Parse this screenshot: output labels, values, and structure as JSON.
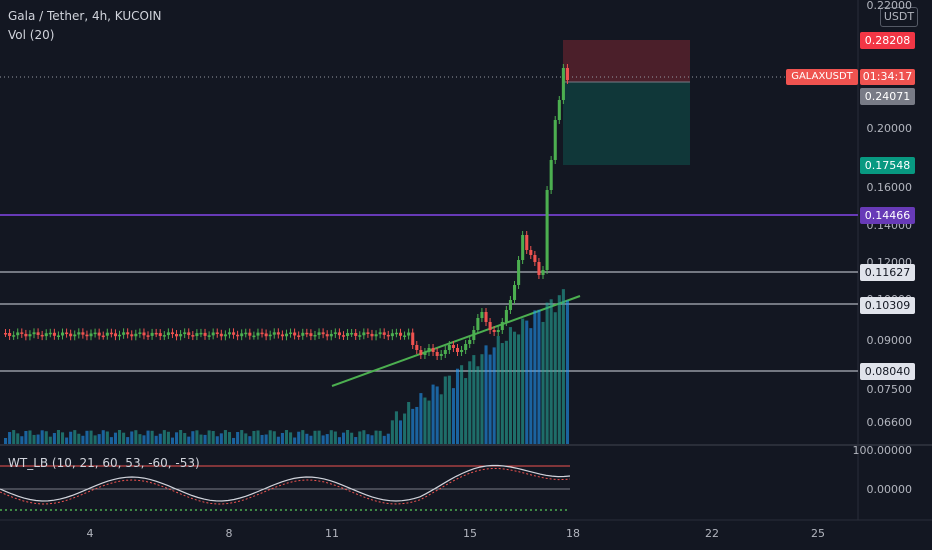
{
  "header": {
    "title": "Gala / Tether, 4h, KUCOIN",
    "volume_indicator": "Vol (20)",
    "oscillator_indicator": "WT_LB (10, 21, 60, 53, -60, -53)",
    "currency": "USDT"
  },
  "price_scale": {
    "labels": [
      "0.22000",
      "0.20000",
      "0.16000",
      "0.14000",
      "0.12000",
      "0.10000",
      "0.09000",
      "0.07500",
      "0.06600"
    ],
    "osc_labels": [
      "100.00000",
      "0.00000"
    ]
  },
  "price_tags": [
    {
      "value": "0.28208",
      "color": "#f23645"
    },
    {
      "value": "0.24071",
      "color": "#787b86"
    },
    {
      "value": "0.17548",
      "color": "#089981"
    },
    {
      "value": "0.14466",
      "color": "#673ab7"
    },
    {
      "value": "0.11627",
      "color": "#787b86"
    },
    {
      "value": "0.10309",
      "color": "#787b86"
    },
    {
      "value": "0.08040",
      "color": "#787b86"
    }
  ],
  "symbol_tag": {
    "symbol": "GALAXUSDT",
    "countdown": "01:34:17"
  },
  "time_axis": {
    "labels": [
      "4",
      "8",
      "11",
      "15",
      "18",
      "22",
      "25"
    ]
  },
  "colors": {
    "up": "#26a69a",
    "down": "#ef5350",
    "body_up": "#4caf50",
    "trendline": "#4caf50",
    "level": "#673ab7"
  }
}
